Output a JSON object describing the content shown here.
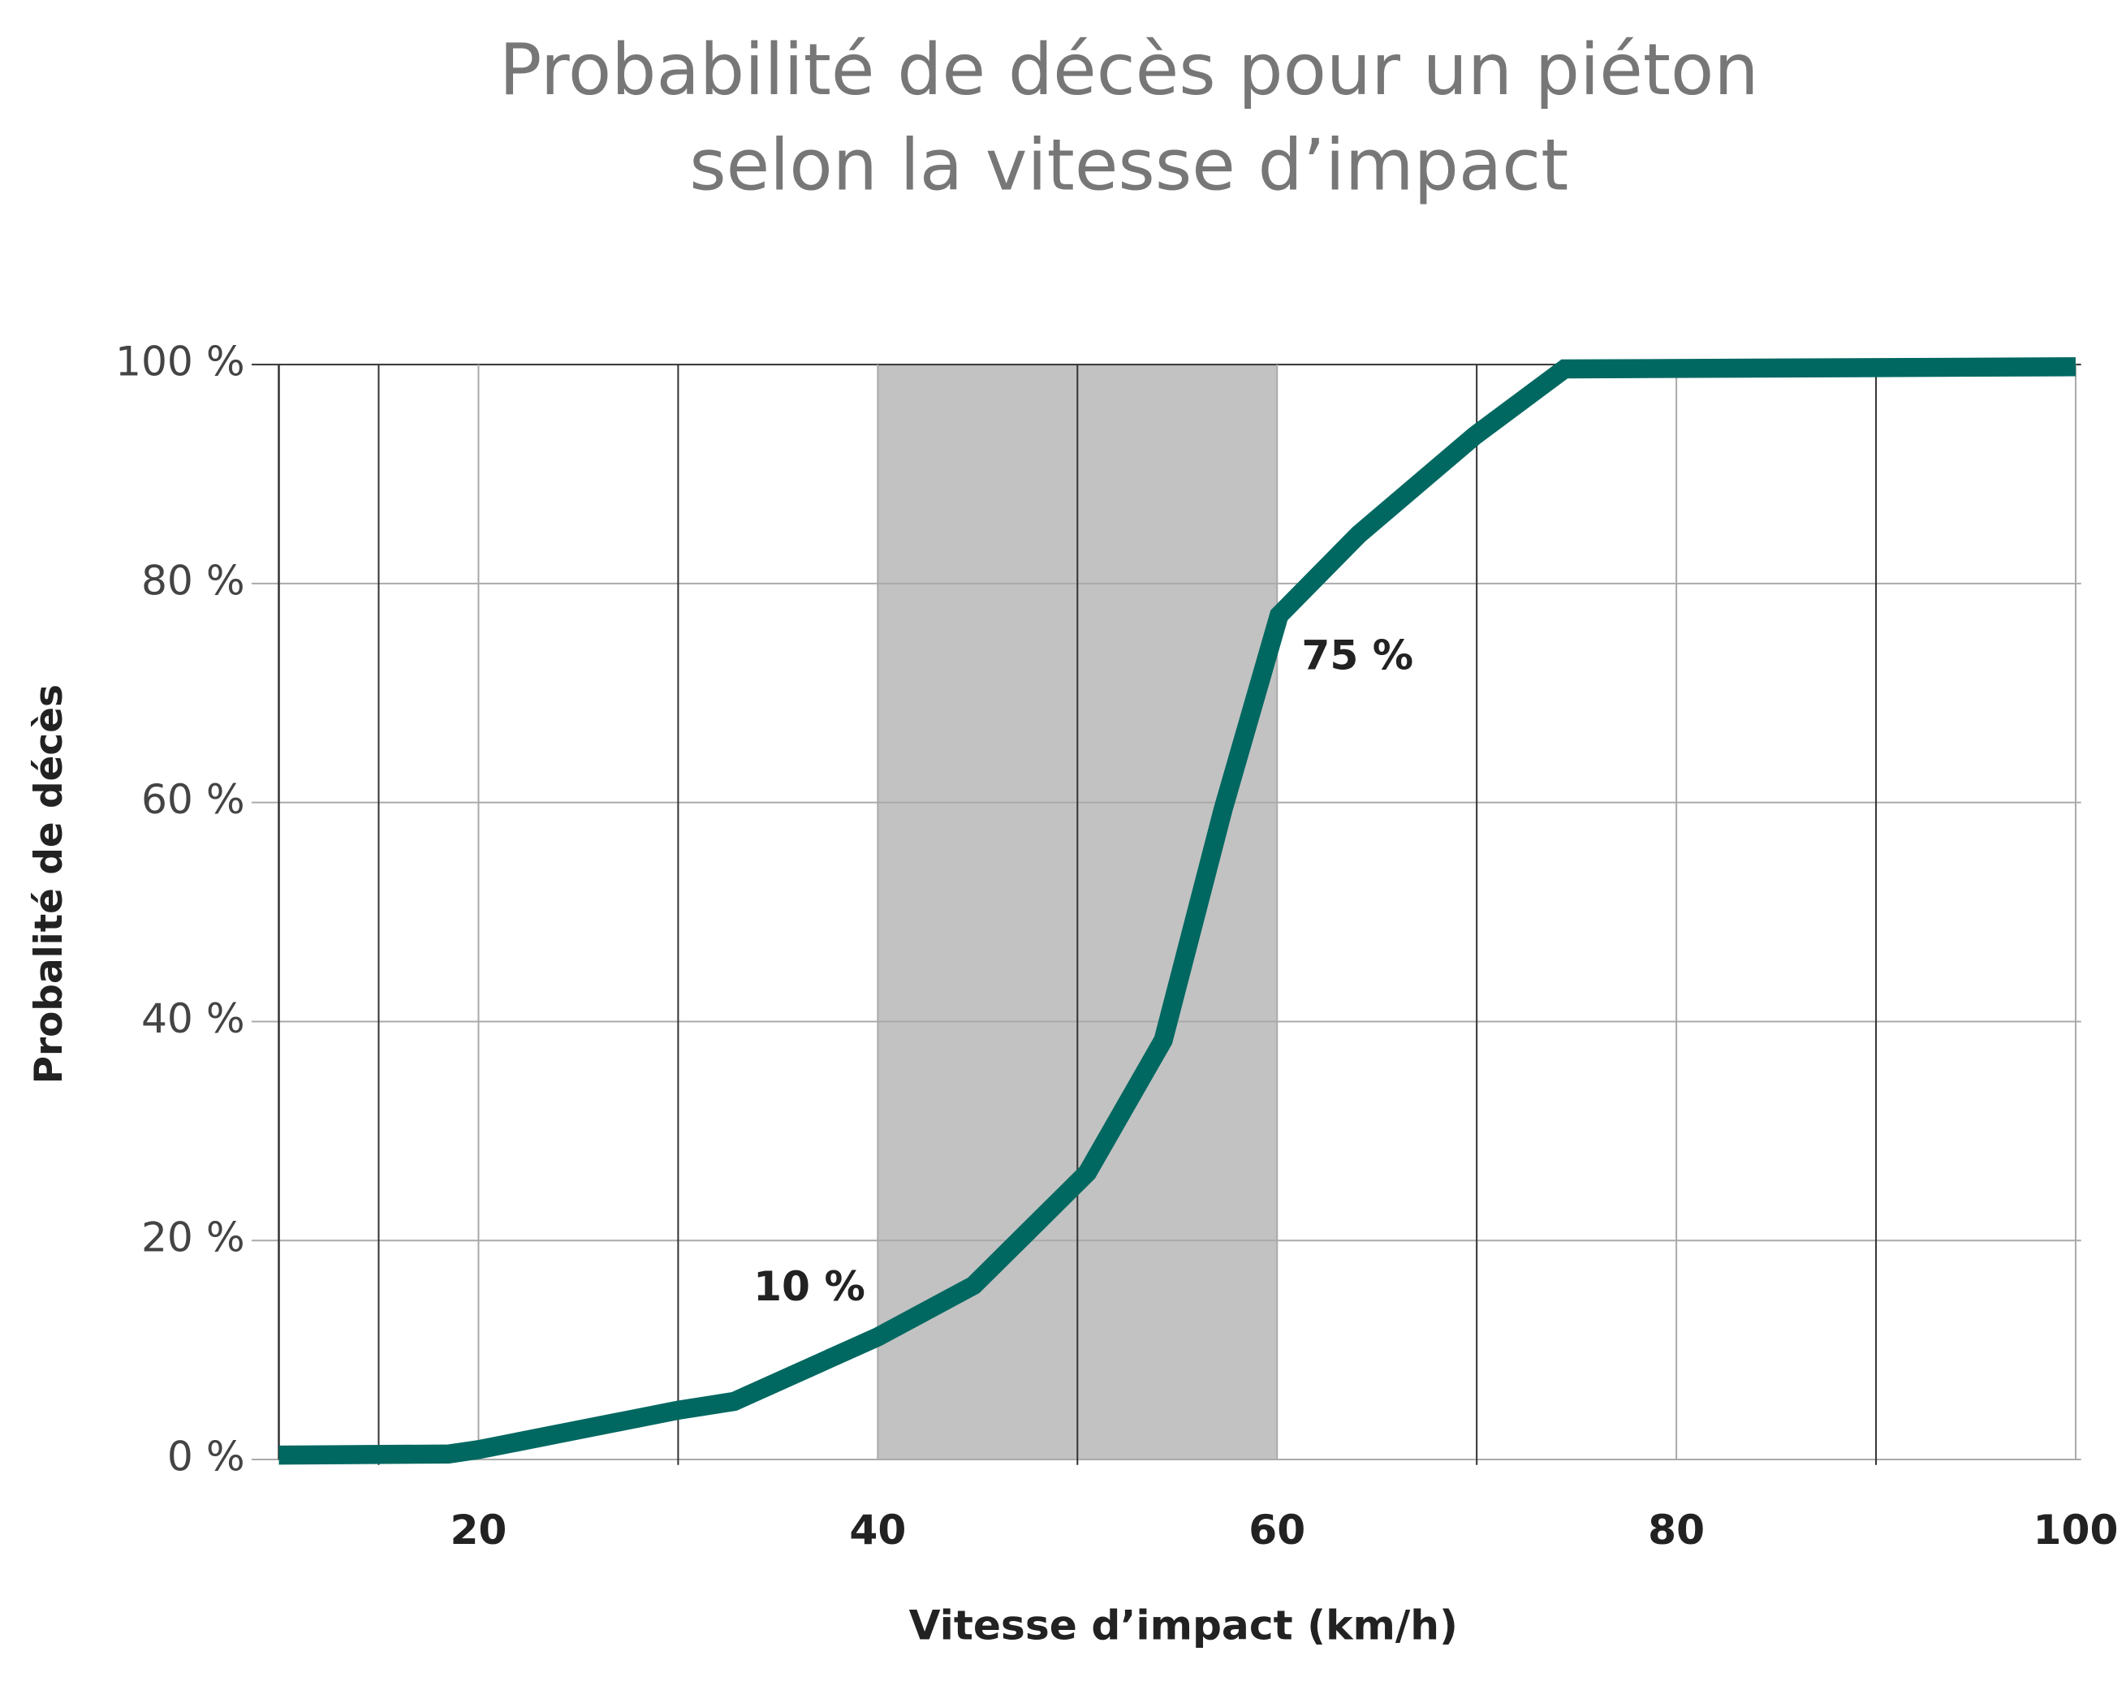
{
  "chart_data": {
    "type": "line",
    "title": [
      "Probabilité de décès pour un piéton",
      "selon la vitesse d’impact"
    ],
    "x_label": "Vitesse d’impact (km/h)",
    "y_label": "Probalité de décès",
    "x": [
      10,
      18.5,
      20,
      30,
      32.8,
      40,
      44.8,
      50.5,
      54.3,
      57.3,
      60.1,
      64.1,
      69.9,
      74.4,
      100
    ],
    "series": [
      {
        "color": "#006861",
        "values": [
          0.4,
          0.5,
          0.9,
          4.5,
          5.3,
          11.2,
          15.9,
          26.2,
          38.3,
          59.4,
          77.1,
          84.5,
          93.5,
          99.6,
          99.8
        ]
      }
    ],
    "xlim": [
      10,
      100
    ],
    "xticks": [
      20,
      40,
      60,
      80,
      100
    ],
    "ylim": [
      0,
      100
    ],
    "yticks": [
      {
        "value": 0,
        "label": "0 %"
      },
      {
        "value": 20,
        "label": "20 %"
      },
      {
        "value": 40,
        "label": "40 %"
      },
      {
        "value": 60,
        "label": "60 %"
      },
      {
        "value": 80,
        "label": "80 %"
      },
      {
        "value": 100,
        "label": "100 %"
      }
    ],
    "shaded_range": [
      40,
      60
    ],
    "shaded_color": "#c2c2c2",
    "grid": true,
    "annotations": [
      "10 %",
      "75 %"
    ]
  }
}
